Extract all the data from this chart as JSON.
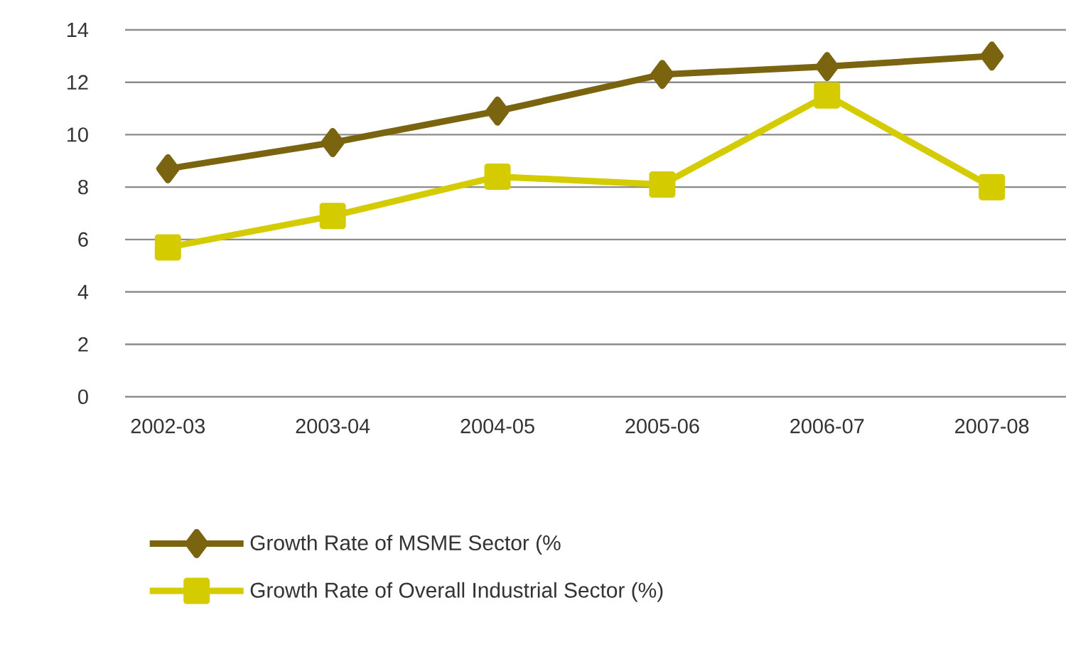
{
  "chart_data": {
    "type": "line",
    "categories": [
      "2002-03",
      "2003-04",
      "2004-05",
      "2005-06",
      "2006-07",
      "2007-08"
    ],
    "series": [
      {
        "name": "Growth Rate of MSME Sector (%",
        "color": "#7a6410",
        "marker": "diamond",
        "values": [
          8.7,
          9.7,
          10.9,
          12.3,
          12.6,
          13.0
        ]
      },
      {
        "name": "Growth Rate of Overall Industrial Sector (%)",
        "color": "#d4cc00",
        "marker": "square",
        "values": [
          5.7,
          6.9,
          8.4,
          8.1,
          11.5,
          8.0
        ]
      }
    ],
    "ylim": [
      0,
      14
    ],
    "yticks": [
      0,
      2,
      4,
      6,
      8,
      10,
      12,
      14
    ],
    "grid": "y",
    "legend": "bottom"
  }
}
